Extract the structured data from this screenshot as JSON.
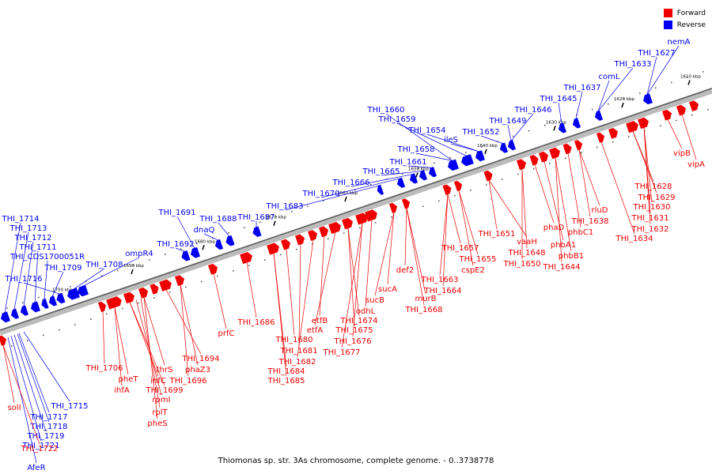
{
  "legend": {
    "forward_label": "Forward",
    "reverse_label": "Reverse",
    "forward_color": "#ee0000",
    "reverse_color": "#0000ee"
  },
  "caption": "Thiomonas sp. str. 3As chromosome, complete genome. - 0..3738778",
  "ticks": [
    "1700 kbp",
    "1690 kbp",
    "1680 kbp",
    "1670 kbp",
    "1660 kbp",
    "1650 kbp",
    "1640 kbp",
    "1630 kbp",
    "1620 kbp",
    "1610 kbp"
  ],
  "reverse_genes": [
    "THI_1714",
    "THI_1713",
    "THI_1712",
    "THI_1711",
    "THI_CDS1700051R",
    "THI_1709",
    "THI_1716",
    "THI_1708",
    "ompR4",
    "THI_1692",
    "THI_1691",
    "dnaQ",
    "THI_1688",
    "THI_1687",
    "THI_1683",
    "THI_1670",
    "THI_1666",
    "THI_1665",
    "THI_1661",
    "THI_1658",
    "THI_1660",
    "THI_1659",
    "THI_1654",
    "ileS",
    "THI_1652",
    "THI_1649",
    "THI_1646",
    "THI_1645",
    "THI_1637",
    "comL",
    "THI_1633",
    "THI_1627",
    "nemA",
    "THI_1715",
    "THI_1717",
    "THI_1718",
    "THI_1719",
    "THI_1721",
    "AfeR"
  ],
  "forward_genes": [
    "solI",
    "THI_1722",
    "THI_1706",
    "pheT",
    "ihfA",
    "infC",
    "thrS",
    "THI_1699",
    "rpmI",
    "rplT",
    "pheS",
    "THI_1694",
    "phaZ3",
    "THI_1696",
    "prfC",
    "THI_1686",
    "THI_1684",
    "THI_1685",
    "THI_1680",
    "THI_1681",
    "THI_1682",
    "etfB",
    "etfA",
    "THI_1674",
    "THI_1675",
    "THI_1676",
    "THI_1677",
    "odhL",
    "sucB",
    "sucA",
    "def2",
    "THI_1663",
    "THI_1664",
    "murB",
    "THI_1668",
    "THI_1657",
    "THI_1655",
    "cspE2",
    "THI_1651",
    "vaaH",
    "THI_1648",
    "THI_1650",
    "phaD",
    "phbA1",
    "phbB1",
    "THI_1644",
    "phbC1",
    "rluD",
    "THI_1638",
    "THI_1634",
    "THI_1628",
    "THI_1629",
    "THI_1630",
    "THI_1631",
    "THI_1632",
    "vipB",
    "vipA"
  ]
}
